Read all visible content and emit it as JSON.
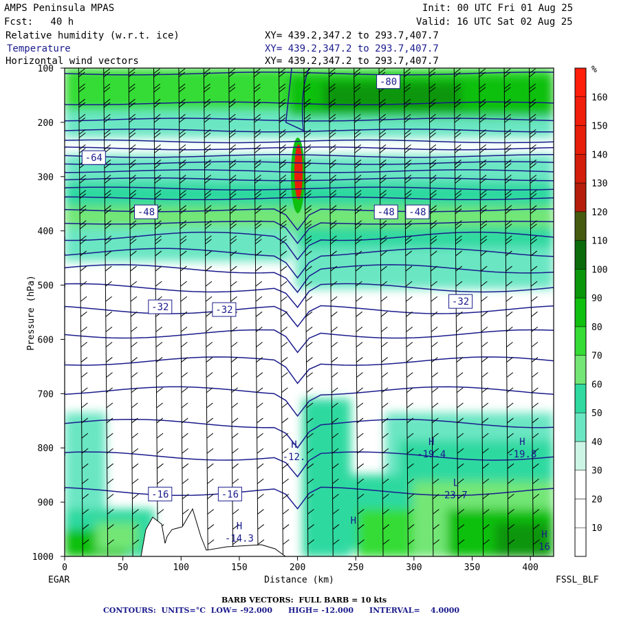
{
  "header": {
    "model": "AMPS Peninsula MPAS",
    "fcst": "Fcst:   40 h",
    "init": "Init: 00 UTC Fri 01 Aug 25",
    "valid": "Valid: 16 UTC Sat 02 Aug 25",
    "field1": "Relative humidity (w.r.t. ice)",
    "field2": "Temperature",
    "field3": "Horizontal wind vectors",
    "xy": "XY= 439.2,347.2 to 293.7,407.7"
  },
  "colors": {
    "temperature": "#1a1a8c",
    "rh_scale": [
      "#ffffff",
      "#ffffff",
      "#ffffff",
      "#cdf5e6",
      "#6be6c3",
      "#2fd9a0",
      "#73e676",
      "#35dc35",
      "#10c010",
      "#0a960a",
      "#0b6b0b",
      "#465a0f",
      "#b41e0a",
      "#d21e0a",
      "#e61e0a",
      "#f01e0a",
      "#ff1e0a"
    ]
  },
  "colorbar": {
    "unit": "%",
    "ticks": [
      "10",
      "20",
      "30",
      "40",
      "50",
      "60",
      "70",
      "80",
      "90",
      "100",
      "110",
      "120",
      "130",
      "140",
      "150",
      "160"
    ]
  },
  "footer": {
    "barbs": "BARB VECTORS:  FULL BARB = 10 kts",
    "contours": "CONTOURS:  UNITS=°C  LOW= -92.000      HIGH= -12.000      INTERVAL=    4.0000"
  },
  "corners": {
    "left": "EGAR",
    "right": "FSSL_BLF"
  },
  "chart_data": {
    "type": "heatmap",
    "xlabel": "Distance (km)",
    "ylabel": "Pressure (hPa)",
    "xlim": [
      0,
      420
    ],
    "ylim": [
      1000,
      100
    ],
    "xticks": [
      "0",
      "50",
      "100",
      "150",
      "200",
      "250",
      "300",
      "350",
      "400"
    ],
    "yticks": [
      "100",
      "200",
      "300",
      "400",
      "500",
      "600",
      "700",
      "800",
      "900",
      "1000"
    ],
    "contour_labels": [
      {
        "text": "-80",
        "x": 278,
        "p": 125
      },
      {
        "text": "-64",
        "x": 25,
        "p": 265
      },
      {
        "text": "-48",
        "x": 70,
        "p": 365
      },
      {
        "text": "-48",
        "x": 276,
        "p": 365
      },
      {
        "text": "-48",
        "x": 303,
        "p": 365
      },
      {
        "text": "-32",
        "x": 82,
        "p": 540
      },
      {
        "text": "-32",
        "x": 137,
        "p": 545
      },
      {
        "text": "-32",
        "x": 340,
        "p": 530
      },
      {
        "text": "-16",
        "x": 82,
        "p": 885
      },
      {
        "text": "-16",
        "x": 142,
        "p": 885
      }
    ],
    "extrema": [
      {
        "kind": "H",
        "value": "-12.",
        "x": 197,
        "p": 810
      },
      {
        "kind": "H",
        "value": "-19.4",
        "x": 315,
        "p": 805
      },
      {
        "kind": "H",
        "value": "-19.8",
        "x": 393,
        "p": 805
      },
      {
        "kind": "L",
        "value": "23.7",
        "x": 336,
        "p": 880
      },
      {
        "kind": "H",
        "value": "-14.3",
        "x": 150,
        "p": 960
      },
      {
        "kind": "H",
        "value": "",
        "x": 248,
        "p": 950
      },
      {
        "kind": "H",
        "value": "16",
        "x": 412,
        "p": 975
      }
    ]
  }
}
